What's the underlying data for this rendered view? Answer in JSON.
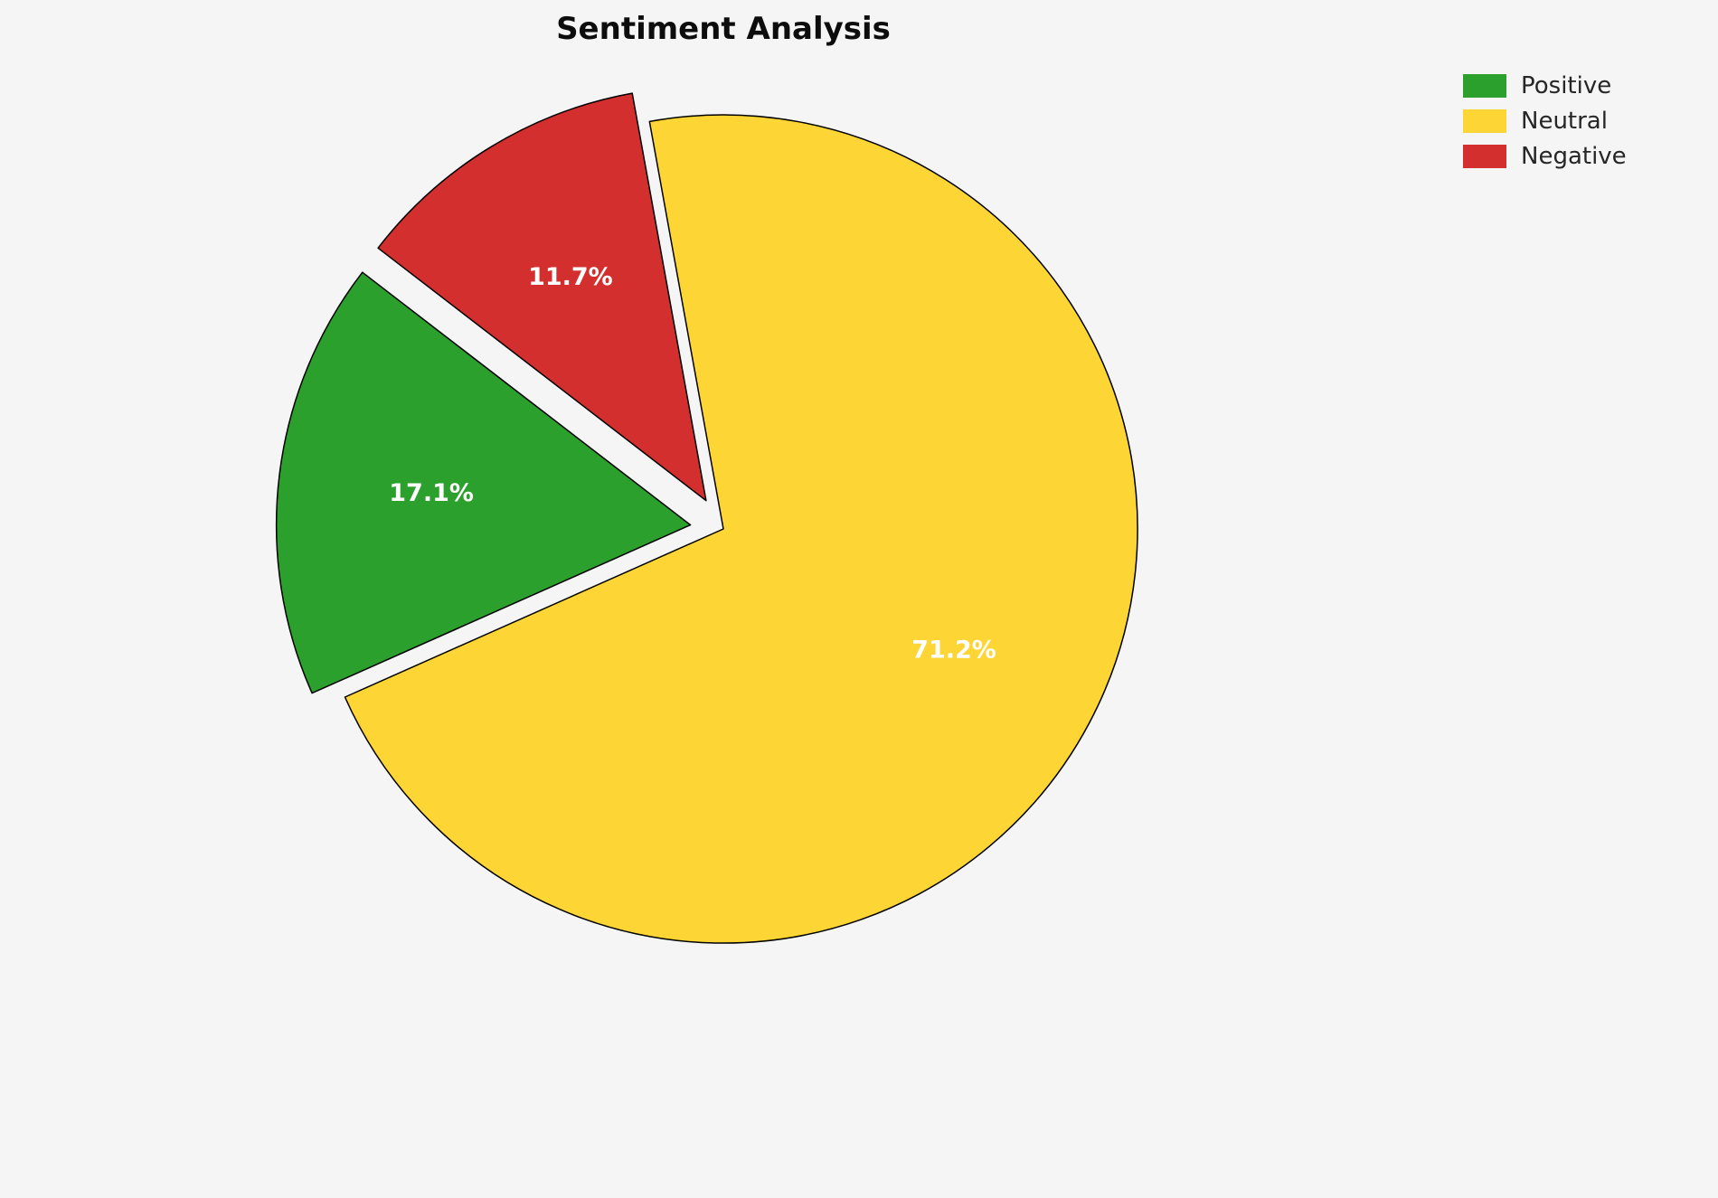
{
  "page": {
    "background_color": "#f5f5f5"
  },
  "chart_data": {
    "type": "pie",
    "title": "Sentiment Analysis",
    "slices": [
      {
        "label": "Positive",
        "value": 17.1,
        "pct_label": "17.1%",
        "color": "#2ca02c",
        "explode": 0.08
      },
      {
        "label": "Neutral",
        "value": 71.2,
        "pct_label": "71.2%",
        "color": "#fdd535",
        "explode": 0
      },
      {
        "label": "Negative",
        "value": 11.7,
        "pct_label": "11.7%",
        "color": "#d32f2f",
        "explode": 0.08
      }
    ],
    "start_angle": 142.4,
    "counterclockwise": true,
    "edge_color": "#000000",
    "edge_width": 1.5,
    "label_color": "#ffffff",
    "legend_position": "upper right",
    "legend_entries": [
      "Positive",
      "Neutral",
      "Negative"
    ]
  }
}
